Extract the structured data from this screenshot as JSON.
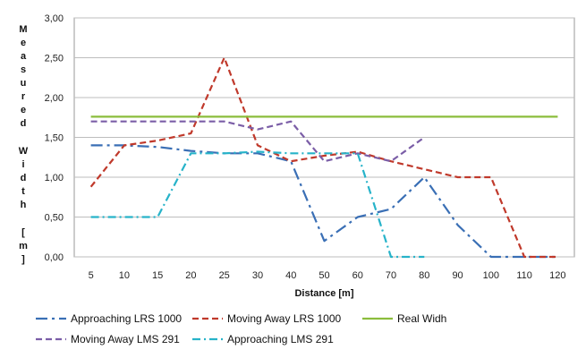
{
  "chart_data": {
    "type": "line",
    "x": [
      5,
      10,
      15,
      20,
      25,
      30,
      40,
      50,
      60,
      70,
      80,
      90,
      100,
      110,
      120
    ],
    "xlabel": "Distance  [m]",
    "ylabel": "Measured Width [m]",
    "ylim": [
      0,
      3
    ],
    "yticks": [
      "0,00",
      "0,50",
      "1,00",
      "1,50",
      "2,00",
      "2,50",
      "3,00"
    ],
    "grid": true,
    "legend_position": "bottom",
    "series": [
      {
        "name": "Approaching  LRS 1000",
        "color": "#3a6fb5",
        "dash": "dashdot-long",
        "values": [
          1.4,
          1.4,
          1.38,
          1.33,
          1.3,
          1.3,
          1.2,
          0.2,
          0.5,
          0.6,
          1.0,
          0.4,
          0.0,
          0.0,
          0.0
        ]
      },
      {
        "name": "Moving Away LRS 1000",
        "color": "#c0392b",
        "dash": "dash",
        "values": [
          0.88,
          1.4,
          1.46,
          1.55,
          2.5,
          1.4,
          1.2,
          1.27,
          1.32,
          1.2,
          1.1,
          1.0,
          1.0,
          0.0,
          0.0
        ]
      },
      {
        "name": "Real Widh",
        "color": "#8bbd3c",
        "dash": "solid",
        "values": [
          1.76,
          1.76,
          1.76,
          1.76,
          1.76,
          1.76,
          1.76,
          1.76,
          1.76,
          1.76,
          1.76,
          1.76,
          1.76,
          1.76,
          1.76
        ]
      },
      {
        "name": "Moving Away LMS 291",
        "color": "#7b5ea7",
        "dash": "dash",
        "values": [
          1.7,
          1.7,
          1.7,
          1.7,
          1.7,
          1.6,
          1.7,
          1.2,
          1.3,
          1.2,
          1.5,
          null,
          null,
          null,
          null
        ]
      },
      {
        "name": "Approaching LMS 291",
        "color": "#27b3c9",
        "dash": "dashdot",
        "values": [
          0.5,
          0.5,
          0.5,
          1.3,
          1.3,
          1.32,
          1.3,
          1.3,
          1.3,
          0.0,
          0.0,
          null,
          null,
          null,
          null
        ]
      }
    ]
  }
}
